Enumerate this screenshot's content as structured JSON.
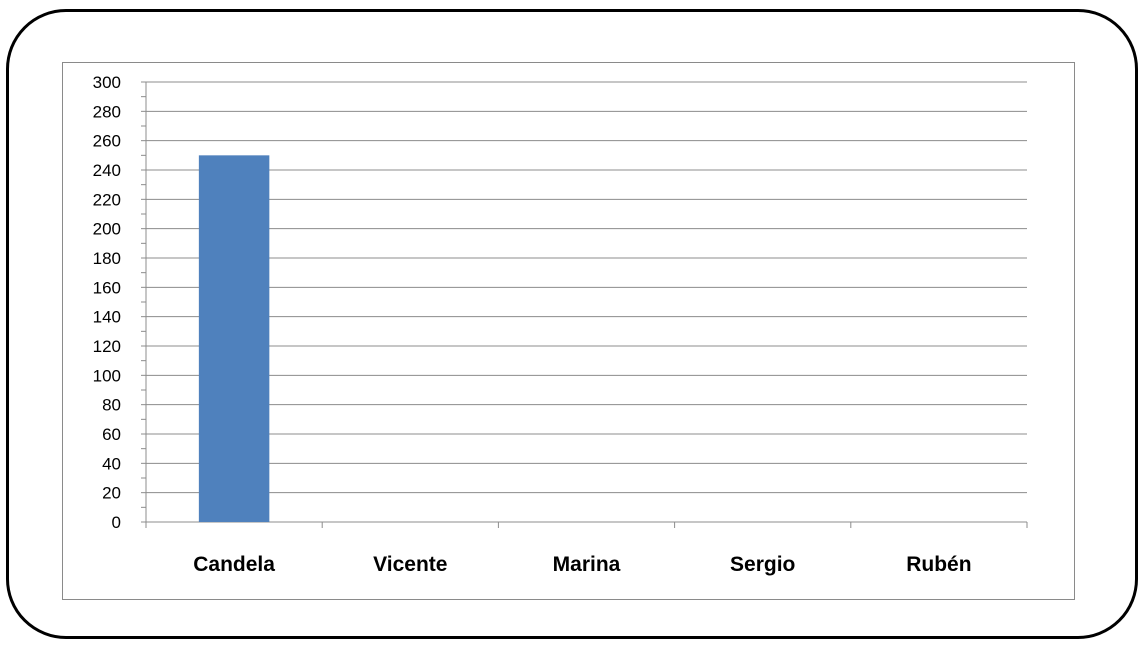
{
  "chart_data": {
    "type": "bar",
    "categories": [
      "Candela",
      "Vicente",
      "Marina",
      "Sergio",
      "Rubén"
    ],
    "values": [
      250,
      0,
      0,
      0,
      0
    ],
    "ylim": [
      0,
      300
    ],
    "y_major_step": 20,
    "y_minor_step": 10,
    "yticks": [
      "0",
      "20",
      "40",
      "60",
      "80",
      "100",
      "120",
      "140",
      "160",
      "180",
      "200",
      "220",
      "240",
      "260",
      "280",
      "300"
    ],
    "grid": true,
    "title": "",
    "xlabel": "",
    "ylabel": "",
    "colors": {
      "bar": "#4F81BD",
      "grid": "#8C8C8C",
      "axis": "#8C8C8C",
      "frame": "#000000"
    }
  }
}
